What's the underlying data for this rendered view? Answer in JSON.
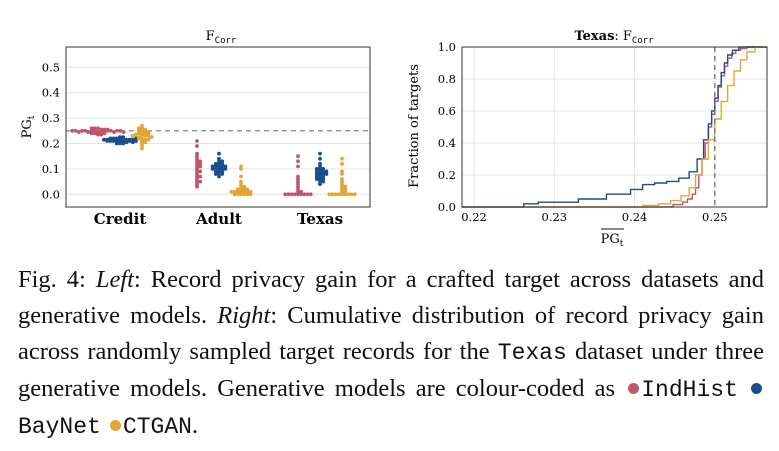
{
  "figure": {
    "left_panel": {
      "title_main": "F",
      "title_sub": "Corr",
      "ylabel_main": "PG",
      "ylabel_sub": "t",
      "dashed_line_value": 0.25
    },
    "right_panel": {
      "title_dataset": "Texas",
      "title_sep": ":",
      "title_main": "F",
      "title_sub": "Corr",
      "ylabel": "Fraction of targets",
      "xlabel_main": "PG",
      "xlabel_sub": "t",
      "dashed_line_value": 0.25
    }
  },
  "chart_data": [
    {
      "type": "scatter",
      "subtype": "swarm",
      "categories": [
        "Credit",
        "Adult",
        "Texas"
      ],
      "ylim": [
        -0.05,
        0.58
      ],
      "yticks": [
        "0.0",
        "0.1",
        "0.2",
        "0.3",
        "0.4",
        "0.5"
      ],
      "grid": true,
      "series": [
        {
          "model": "IndHist",
          "color": "#c0566a",
          "values": {
            "Credit": [
              0.24,
              0.245,
              0.25,
              0.25,
              0.26,
              0.24,
              0.245,
              0.255,
              0.25,
              0.235,
              0.26,
              0.25,
              0.24,
              0.245,
              0.25,
              0.255,
              0.24,
              0.25,
              0.245,
              0.25,
              0.26,
              0.235,
              0.25,
              0.245,
              0.25,
              0.24,
              0.255,
              0.25,
              0.245,
              0.25
            ],
            "Adult": [
              0.21,
              0.19,
              0.16,
              0.15,
              0.14,
              0.13,
              0.12,
              0.12,
              0.11,
              0.1,
              0.09,
              0.08,
              0.07,
              0.06,
              0.05,
              0.05,
              0.04,
              0.03,
              0.13,
              0.11,
              0.09,
              0.07
            ],
            "Texas": [
              0.15,
              0.13,
              0.11,
              0.07,
              0.06,
              0.05,
              0.04,
              0.03,
              0.02,
              0.01,
              0.01,
              0.0,
              0.0,
              0.0,
              0.0,
              0.0,
              0.0,
              0.0,
              0.0,
              0.0
            ]
          }
        },
        {
          "model": "BayNet",
          "color": "#184f8c",
          "values": {
            "Credit": [
              0.225,
              0.22,
              0.215,
              0.21,
              0.205,
              0.2,
              0.22,
              0.21,
              0.215,
              0.225,
              0.205,
              0.21,
              0.22,
              0.215,
              0.21,
              0.2,
              0.22,
              0.215,
              0.21,
              0.205,
              0.215,
              0.22,
              0.21,
              0.2,
              0.215,
              0.21
            ],
            "Adult": [
              0.16,
              0.14,
              0.13,
              0.12,
              0.12,
              0.11,
              0.11,
              0.11,
              0.1,
              0.1,
              0.1,
              0.09,
              0.09,
              0.08,
              0.08,
              0.07,
              0.12,
              0.1,
              0.09,
              0.11,
              0.13,
              0.1,
              0.08,
              0.11
            ],
            "Texas": [
              0.16,
              0.14,
              0.12,
              0.11,
              0.1,
              0.1,
              0.09,
              0.09,
              0.09,
              0.08,
              0.08,
              0.08,
              0.07,
              0.07,
              0.06,
              0.06,
              0.05,
              0.05,
              0.04,
              0.1,
              0.09,
              0.08,
              0.07,
              0.06
            ]
          }
        },
        {
          "model": "CTGAN",
          "color": "#e0a734",
          "values": {
            "Credit": [
              0.27,
              0.26,
              0.255,
              0.25,
              0.245,
              0.24,
              0.24,
              0.235,
              0.23,
              0.225,
              0.22,
              0.215,
              0.21,
              0.205,
              0.2,
              0.19,
              0.18,
              0.25,
              0.24,
              0.23,
              0.22,
              0.26,
              0.245,
              0.235,
              0.225,
              0.215,
              0.23,
              0.24
            ],
            "Adult": [
              0.11,
              0.1,
              0.07,
              0.05,
              0.04,
              0.03,
              0.03,
              0.02,
              0.02,
              0.02,
              0.01,
              0.01,
              0.01,
              0.01,
              0.01,
              0.01,
              0.0,
              0.0,
              0.0,
              0.0,
              0.0,
              0.0,
              0.02,
              0.01
            ],
            "Texas": [
              0.14,
              0.12,
              0.09,
              0.08,
              0.06,
              0.05,
              0.04,
              0.03,
              0.02,
              0.01,
              0.0,
              0.0,
              0.0,
              0.0,
              0.0,
              0.0,
              0.0,
              0.0,
              0.0,
              0.01,
              0.02,
              0.03
            ]
          }
        }
      ]
    },
    {
      "type": "line",
      "subtype": "ecdf-step",
      "xlim": [
        0.2185,
        0.2565
      ],
      "ylim": [
        0,
        1.0
      ],
      "xticks": [
        0.22,
        0.23,
        0.24,
        0.25
      ],
      "xtick_labels": [
        "0.22",
        "0.23",
        "0.24",
        "0.25"
      ],
      "yticks": [
        "0.0",
        "0.2",
        "0.4",
        "0.6",
        "0.8",
        "1.0"
      ],
      "grid": true,
      "series": [
        {
          "model": "IndHist",
          "color": "#c0566a",
          "x": [
            0.2435,
            0.2448,
            0.246,
            0.2466,
            0.2472,
            0.2476,
            0.248,
            0.2484,
            0.2488,
            0.2492,
            0.2496,
            0.25,
            0.2504,
            0.2508,
            0.2512,
            0.2516,
            0.2521,
            0.2526,
            0.2532,
            0.254
          ],
          "y": [
            0.0,
            0.015,
            0.03,
            0.05,
            0.08,
            0.12,
            0.2,
            0.3,
            0.4,
            0.5,
            0.58,
            0.66,
            0.75,
            0.82,
            0.88,
            0.93,
            0.96,
            0.98,
            0.99,
            1.0
          ]
        },
        {
          "model": "BayNet",
          "color": "#184f8c",
          "x": [
            0.225,
            0.2262,
            0.228,
            0.233,
            0.2365,
            0.2395,
            0.241,
            0.2425,
            0.244,
            0.2455,
            0.2468,
            0.2478,
            0.2486,
            0.2492,
            0.2496,
            0.25,
            0.2504,
            0.2508,
            0.2512,
            0.2516,
            0.2522,
            0.253
          ],
          "y": [
            0.0,
            0.02,
            0.03,
            0.05,
            0.08,
            0.11,
            0.14,
            0.15,
            0.16,
            0.18,
            0.22,
            0.3,
            0.42,
            0.52,
            0.6,
            0.68,
            0.76,
            0.84,
            0.9,
            0.95,
            0.98,
            1.0
          ]
        },
        {
          "model": "CTGAN",
          "color": "#e0a734",
          "x": [
            0.239,
            0.241,
            0.243,
            0.2445,
            0.2458,
            0.2468,
            0.2476,
            0.2484,
            0.2492,
            0.25,
            0.2508,
            0.2516,
            0.2524,
            0.2532,
            0.254,
            0.255
          ],
          "y": [
            0.0,
            0.01,
            0.02,
            0.04,
            0.07,
            0.12,
            0.2,
            0.3,
            0.42,
            0.55,
            0.66,
            0.76,
            0.85,
            0.92,
            0.97,
            1.0
          ]
        }
      ]
    }
  ],
  "caption": {
    "fig_label": "Fig. 4:",
    "left_word": "Left",
    "left_text": ": Record privacy gain for a crafted target across datasets and generative models.",
    "right_word": "Right",
    "right_text_1": ": Cumulative distribution of record privacy gain across randomly sampled target records for the",
    "dataset_name": "Texas",
    "right_text_2": "dataset under three generative models. Generative models are colour-coded as",
    "model_1": "IndHist",
    "model_2": "BayNet",
    "model_3": "CTGAN",
    "end": "."
  },
  "colors": {
    "indhist": "#c0566a",
    "baynet": "#184f8c",
    "ctgan": "#e0a734"
  }
}
